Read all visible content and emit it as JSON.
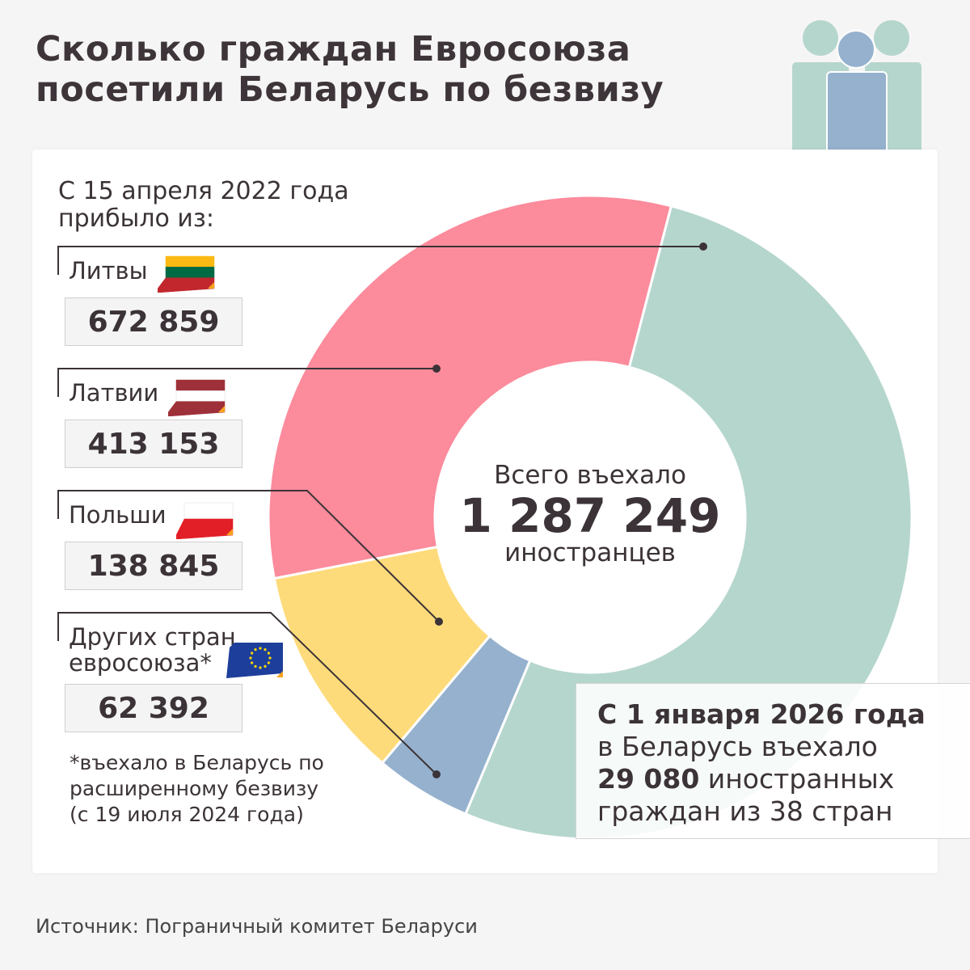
{
  "title": [
    "Сколько граждан Евросоюза",
    "посетили Беларусь по безвизу"
  ],
  "subtitle": [
    "С 15 апреля 2022 года",
    "прибыло из:"
  ],
  "center": {
    "line1": "Всего въехало",
    "total": "1 287 249",
    "line3": "иностранцев"
  },
  "footnote": [
    "*въехало в Беларусь по",
    "расширенному безвизу",
    "(с 19 июля 2024 года)"
  ],
  "info": {
    "bold1": "С 1 января 2026 года",
    "line2": "в Беларусь въехало",
    "bold3": "29 080",
    "line3": " иностранных",
    "line4": "граждан из 38 стран"
  },
  "source": "Источник: Пограничный комитет Беларуси",
  "chart_data": {
    "type": "pie",
    "donut": true,
    "categories": [
      "Литвы",
      "Латвии",
      "Польши",
      "Других стран евросоюза*"
    ],
    "labels": [
      [
        "Литвы"
      ],
      [
        "Латвии"
      ],
      [
        "Польши"
      ],
      [
        "Других стран",
        "евросоюза*"
      ]
    ],
    "values": [
      672859,
      413153,
      138845,
      62392
    ],
    "value_labels": [
      "672 859",
      "413 153",
      "138 845",
      "62 392"
    ],
    "colors": [
      "#b5d6cd",
      "#fc8b9c",
      "#fedb7a",
      "#95b1ce"
    ],
    "flags": [
      "lithuania-flag",
      "latvia-flag",
      "poland-flag",
      "eu-flag"
    ]
  },
  "icon": "people-group-icon"
}
